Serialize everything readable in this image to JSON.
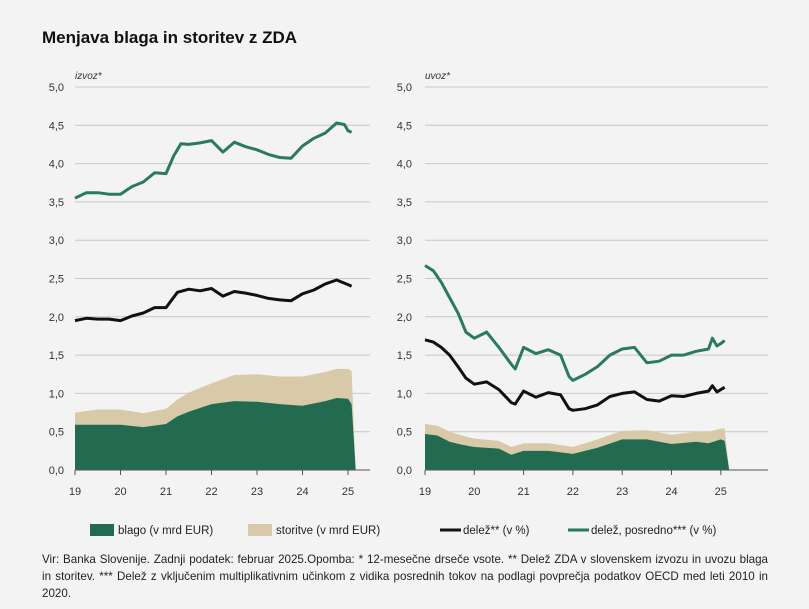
{
  "title": "Menjava blaga in storitev z ZDA",
  "note": "Vir: Banka Slovenije. Zadnji podatek: februar 2025.Opomba: * 12-mesečne drseče vsote. ** Delež ZDA v slovenskem izvozu in uvozu blaga in storitev. *** Delež z vključenim multiplikativnim učinkom z vidika posrednih tokov na podlagi povprečja podatkov OECD med leti 2010 in 2020.",
  "legend": {
    "blago": "blago (v mrd EUR)",
    "storitve": "storitve (v mrd EUR)",
    "delez": "delež** (v %)",
    "posredno": "delež, posredno*** (v %)"
  },
  "colors": {
    "blago": "#226b50",
    "storitve": "#d8c9a8",
    "delez": "#111111",
    "posredno": "#2a7a5c",
    "grid": "#c8c8c8"
  },
  "chart_data": [
    {
      "type": "area",
      "panel_label": "izvoz*",
      "ylim": [
        0,
        5
      ],
      "yticks": [
        "0,0",
        "0,5",
        "1,0",
        "1,5",
        "2,0",
        "2,5",
        "3,0",
        "3,5",
        "4,0",
        "4,5",
        "5,0"
      ],
      "xticks": [
        "19",
        "20",
        "21",
        "22",
        "23",
        "24",
        "25"
      ],
      "x_range": [
        2019.0,
        2025.6
      ],
      "grid": true,
      "series": [
        {
          "name": "blago (v mrd EUR)",
          "kind": "area",
          "x": [
            2019.0,
            2019.5,
            2020.0,
            2020.5,
            2021.0,
            2021.25,
            2021.5,
            2022.0,
            2022.5,
            2023.0,
            2023.5,
            2024.0,
            2024.5,
            2024.75,
            2025.0,
            2025.08,
            2025.17
          ],
          "y": [
            0.59,
            0.59,
            0.59,
            0.56,
            0.6,
            0.7,
            0.76,
            0.86,
            0.9,
            0.89,
            0.86,
            0.84,
            0.9,
            0.94,
            0.93,
            0.86,
            0.0
          ]
        },
        {
          "name": "storitve (v mrd EUR)",
          "kind": "area_total",
          "x": [
            2019.0,
            2019.5,
            2020.0,
            2020.5,
            2021.0,
            2021.25,
            2021.5,
            2022.0,
            2022.5,
            2023.0,
            2023.5,
            2024.0,
            2024.5,
            2024.75,
            2025.0,
            2025.08,
            2025.17
          ],
          "y": [
            0.75,
            0.79,
            0.79,
            0.74,
            0.8,
            0.92,
            1.01,
            1.13,
            1.24,
            1.25,
            1.22,
            1.22,
            1.28,
            1.32,
            1.32,
            1.29,
            0.0
          ]
        },
        {
          "name": "delež** (v %)",
          "kind": "line",
          "x": [
            2019.0,
            2019.25,
            2019.5,
            2019.75,
            2020.0,
            2020.25,
            2020.5,
            2020.75,
            2021.0,
            2021.25,
            2021.5,
            2021.75,
            2022.0,
            2022.25,
            2022.5,
            2022.75,
            2023.0,
            2023.25,
            2023.5,
            2023.75,
            2024.0,
            2024.25,
            2024.5,
            2024.75,
            2025.0,
            2025.08
          ],
          "y": [
            1.95,
            1.98,
            1.97,
            1.97,
            1.95,
            2.01,
            2.05,
            2.12,
            2.12,
            2.32,
            2.36,
            2.34,
            2.37,
            2.27,
            2.33,
            2.31,
            2.28,
            2.24,
            2.22,
            2.21,
            2.3,
            2.35,
            2.43,
            2.48,
            2.42,
            2.4
          ]
        },
        {
          "name": "delež, posredno*** (v %)",
          "kind": "line",
          "x": [
            2019.0,
            2019.25,
            2019.5,
            2019.75,
            2020.0,
            2020.25,
            2020.5,
            2020.75,
            2021.0,
            2021.17,
            2021.33,
            2021.5,
            2021.75,
            2022.0,
            2022.25,
            2022.5,
            2022.75,
            2023.0,
            2023.25,
            2023.5,
            2023.75,
            2024.0,
            2024.25,
            2024.5,
            2024.75,
            2024.92,
            2025.0,
            2025.08
          ],
          "y": [
            3.55,
            3.62,
            3.62,
            3.6,
            3.6,
            3.7,
            3.76,
            3.88,
            3.87,
            4.1,
            4.26,
            4.25,
            4.27,
            4.3,
            4.15,
            4.28,
            4.22,
            4.18,
            4.12,
            4.08,
            4.07,
            4.23,
            4.33,
            4.4,
            4.53,
            4.51,
            4.43,
            4.41
          ]
        }
      ]
    },
    {
      "type": "area",
      "panel_label": "uvoz*",
      "ylim": [
        0,
        5
      ],
      "yticks": [
        "0,0",
        "0,5",
        "1,0",
        "1,5",
        "2,0",
        "2,5",
        "3,0",
        "3,5",
        "4,0",
        "4,5",
        "5,0"
      ],
      "xticks": [
        "19",
        "20",
        "21",
        "22",
        "23",
        "24",
        "25"
      ],
      "x_range": [
        2019.0,
        2025.6
      ],
      "grid": true,
      "series": [
        {
          "name": "blago (v mrd EUR)",
          "kind": "area",
          "x": [
            2019.0,
            2019.25,
            2019.5,
            2019.75,
            2020.0,
            2020.5,
            2020.75,
            2021.0,
            2021.5,
            2022.0,
            2022.5,
            2023.0,
            2023.5,
            2024.0,
            2024.5,
            2024.75,
            2025.0,
            2025.08,
            2025.17
          ],
          "y": [
            0.47,
            0.45,
            0.37,
            0.33,
            0.3,
            0.28,
            0.2,
            0.25,
            0.25,
            0.21,
            0.29,
            0.4,
            0.4,
            0.34,
            0.37,
            0.35,
            0.4,
            0.38,
            0.0
          ]
        },
        {
          "name": "storitve (v mrd EUR)",
          "kind": "area_total",
          "x": [
            2019.0,
            2019.25,
            2019.5,
            2019.75,
            2020.0,
            2020.5,
            2020.75,
            2021.0,
            2021.5,
            2022.0,
            2022.5,
            2023.0,
            2023.5,
            2024.0,
            2024.5,
            2024.75,
            2025.0,
            2025.08,
            2025.17
          ],
          "y": [
            0.6,
            0.58,
            0.5,
            0.45,
            0.41,
            0.38,
            0.3,
            0.35,
            0.35,
            0.3,
            0.4,
            0.51,
            0.52,
            0.46,
            0.5,
            0.5,
            0.54,
            0.54,
            0.0
          ]
        },
        {
          "name": "delež** (v %)",
          "kind": "line",
          "x": [
            2019.0,
            2019.17,
            2019.33,
            2019.5,
            2019.67,
            2019.83,
            2020.0,
            2020.25,
            2020.5,
            2020.75,
            2020.83,
            2021.0,
            2021.25,
            2021.5,
            2021.75,
            2021.92,
            2022.0,
            2022.25,
            2022.5,
            2022.75,
            2023.0,
            2023.25,
            2023.5,
            2023.75,
            2024.0,
            2024.25,
            2024.5,
            2024.75,
            2024.83,
            2024.92,
            2025.0,
            2025.08
          ],
          "y": [
            1.7,
            1.67,
            1.6,
            1.5,
            1.35,
            1.2,
            1.12,
            1.15,
            1.05,
            0.88,
            0.86,
            1.03,
            0.95,
            1.01,
            0.98,
            0.8,
            0.78,
            0.8,
            0.85,
            0.96,
            1.0,
            1.02,
            0.92,
            0.9,
            0.97,
            0.96,
            1.0,
            1.03,
            1.1,
            1.02,
            1.05,
            1.08
          ]
        },
        {
          "name": "delež, posredno*** (v %)",
          "kind": "line",
          "x": [
            2019.0,
            2019.17,
            2019.33,
            2019.5,
            2019.67,
            2019.83,
            2020.0,
            2020.25,
            2020.5,
            2020.75,
            2020.83,
            2021.0,
            2021.25,
            2021.5,
            2021.75,
            2021.92,
            2022.0,
            2022.25,
            2022.5,
            2022.75,
            2023.0,
            2023.25,
            2023.5,
            2023.75,
            2024.0,
            2024.25,
            2024.5,
            2024.75,
            2024.83,
            2024.92,
            2025.0,
            2025.08
          ],
          "y": [
            2.67,
            2.6,
            2.45,
            2.25,
            2.05,
            1.8,
            1.72,
            1.8,
            1.6,
            1.38,
            1.32,
            1.6,
            1.52,
            1.57,
            1.5,
            1.22,
            1.17,
            1.25,
            1.35,
            1.5,
            1.58,
            1.6,
            1.4,
            1.42,
            1.5,
            1.5,
            1.55,
            1.58,
            1.72,
            1.62,
            1.65,
            1.69
          ]
        }
      ]
    }
  ]
}
